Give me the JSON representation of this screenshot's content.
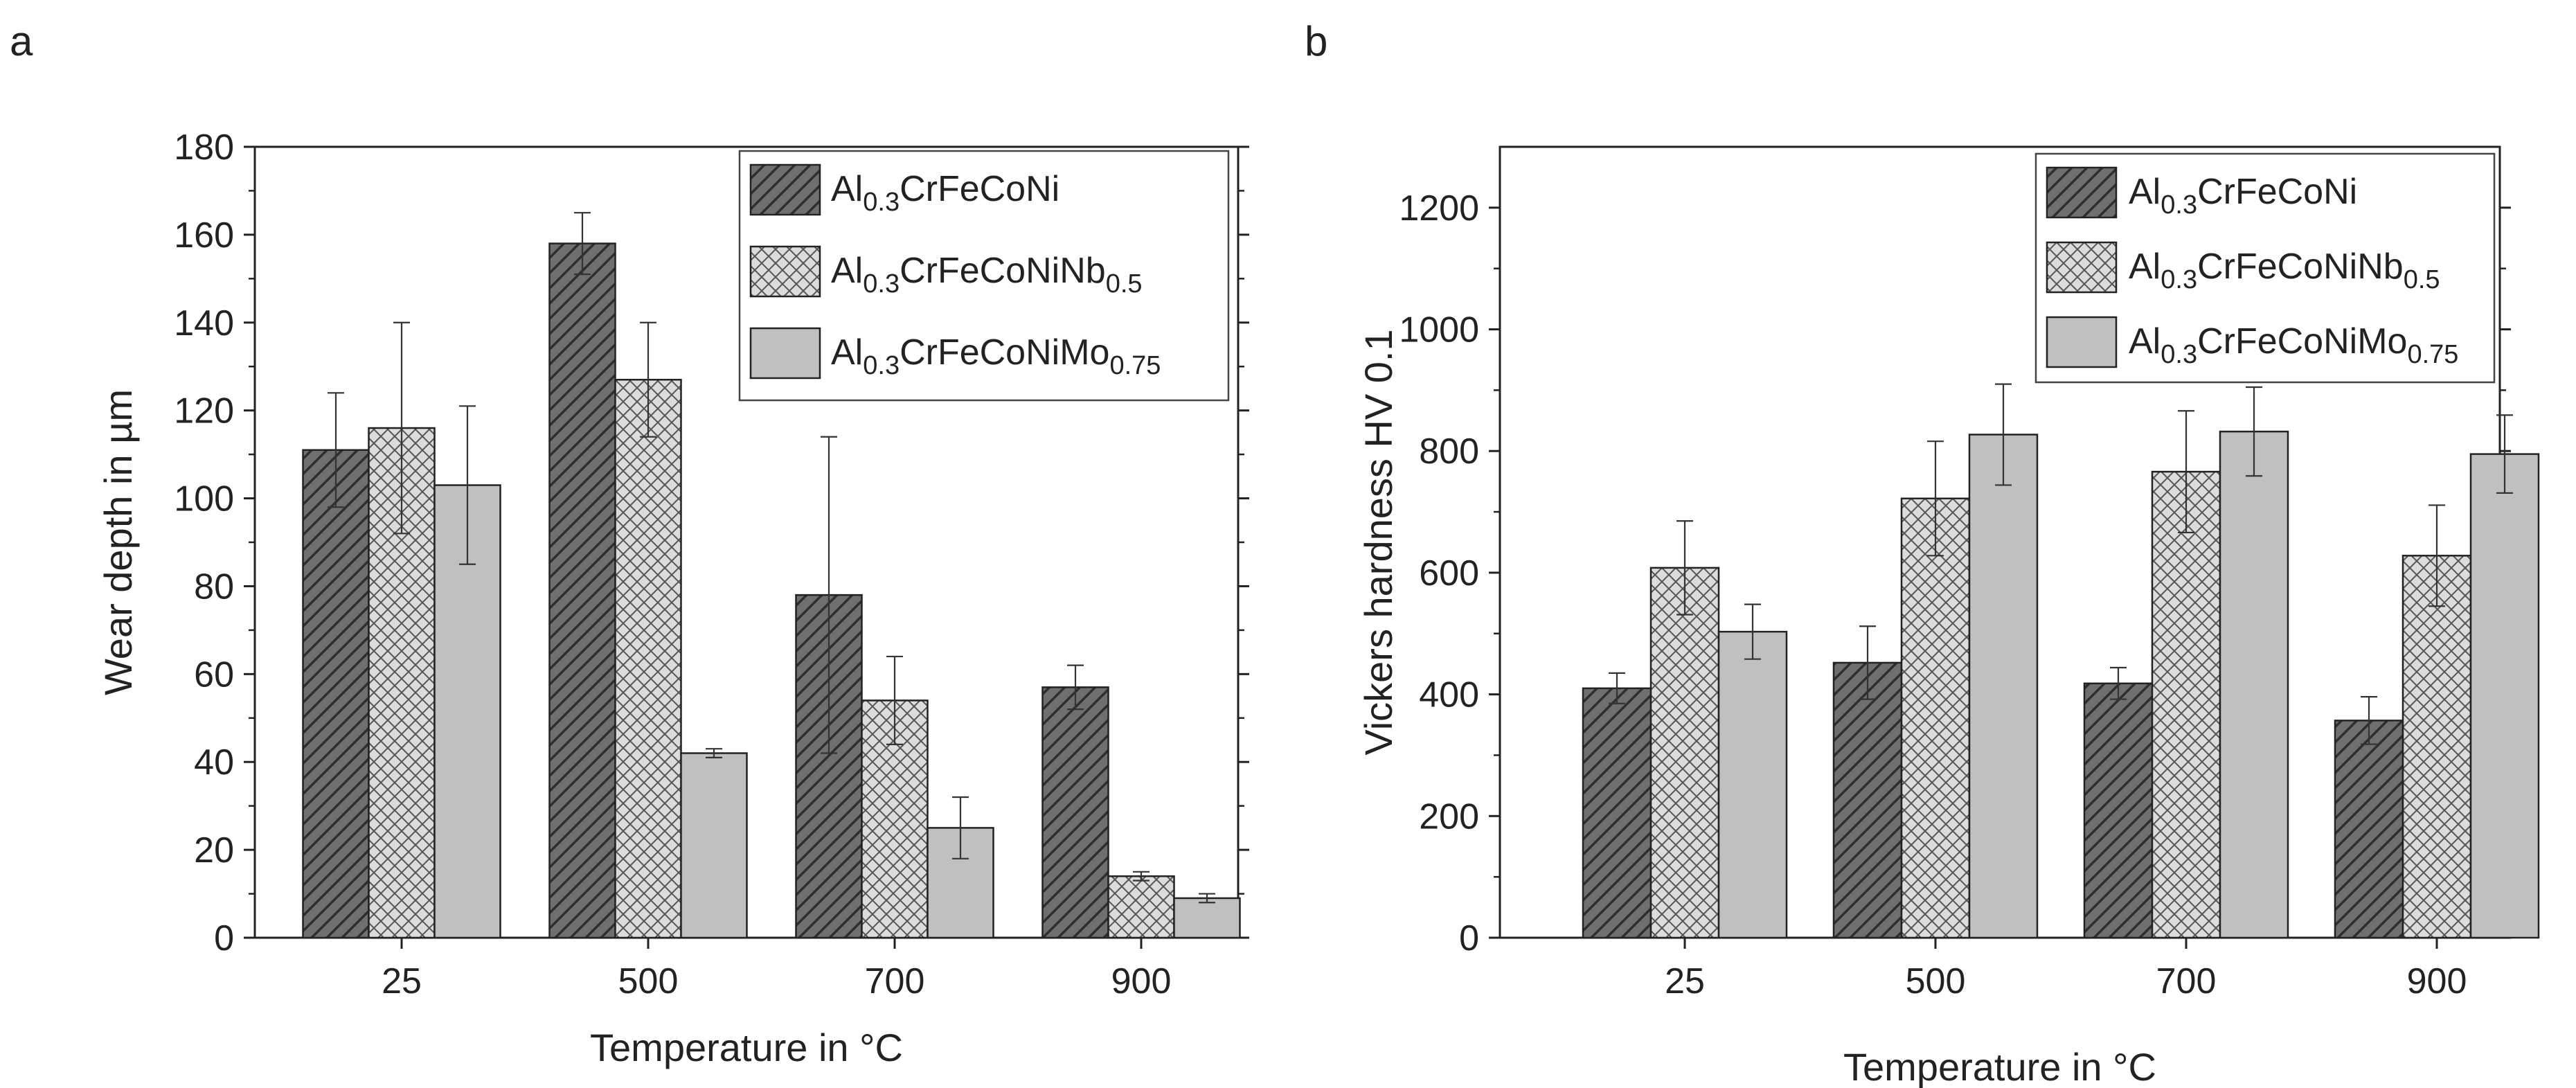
{
  "chart_data": [
    {
      "panel": "a",
      "type": "bar",
      "title": "",
      "xlabel": "Temperature in °C",
      "ylabel": "Wear depth in µm",
      "categories": [
        "25",
        "500",
        "700",
        "900"
      ],
      "ylim": [
        0,
        180
      ],
      "yticks": [
        0,
        20,
        40,
        60,
        80,
        100,
        120,
        140,
        160,
        180
      ],
      "grid": false,
      "legend_position": "top-right",
      "series": [
        {
          "key": "s1",
          "name": "Al0.3CrFeCoNi",
          "name_parts": [
            "Al",
            "0.3",
            "CrFeCoNi",
            ""
          ],
          "fill": "hatch",
          "color": "#6f6f6f",
          "values": [
            111,
            158,
            78,
            57
          ],
          "errors": [
            [
              98,
              124
            ],
            [
              151,
              165
            ],
            [
              42,
              114
            ],
            [
              52,
              62
            ]
          ]
        },
        {
          "key": "s2",
          "name": "Al0.3CrFeCoNiNb0.5",
          "name_parts": [
            "Al",
            "0.3",
            "CrFeCoNiNb",
            "0.5"
          ],
          "fill": "crosshatch",
          "color": "#d9d9d9",
          "values": [
            116,
            127,
            54,
            14
          ],
          "errors": [
            [
              92,
              140
            ],
            [
              114,
              140
            ],
            [
              44,
              64
            ],
            [
              13,
              15
            ]
          ]
        },
        {
          "key": "s3",
          "name": "Al0.3CrFeCoNiMo0.75",
          "name_parts": [
            "Al",
            "0.3",
            "CrFeCoNiMo",
            "0.75"
          ],
          "fill": "solid",
          "color": "#c0c0c0",
          "values": [
            103,
            42,
            25,
            9
          ],
          "errors": [
            [
              85,
              121
            ],
            [
              41,
              43
            ],
            [
              18,
              32
            ],
            [
              8,
              10
            ]
          ]
        }
      ]
    },
    {
      "panel": "b",
      "type": "bar",
      "title": "",
      "xlabel": "Temperature in °C",
      "ylabel": "Vickers hardness HV 0.1",
      "categories": [
        "25",
        "500",
        "700",
        "900"
      ],
      "ylim": [
        0,
        1300
      ],
      "yticks": [
        0,
        200,
        400,
        600,
        800,
        1000,
        1200
      ],
      "grid": false,
      "legend_position": "top-right",
      "series": [
        {
          "key": "s1",
          "name": "Al0.3CrFeCoNi",
          "name_parts": [
            "Al",
            "0.3",
            "CrFeCoNi",
            ""
          ],
          "fill": "hatch",
          "color": "#6f6f6f",
          "values": [
            410,
            452,
            418,
            357
          ],
          "errors": [
            [
              385,
              435
            ],
            [
              392,
              512
            ],
            [
              392,
              444
            ],
            [
              318,
              396
            ]
          ]
        },
        {
          "key": "s2",
          "name": "Al0.3CrFeCoNiNb0.5",
          "name_parts": [
            "Al",
            "0.3",
            "CrFeCoNiNb",
            "0.5"
          ],
          "fill": "crosshatch",
          "color": "#d9d9d9",
          "values": [
            608,
            722,
            766,
            628
          ],
          "errors": [
            [
              531,
              685
            ],
            [
              628,
              816
            ],
            [
              666,
              866
            ],
            [
              545,
              711
            ]
          ]
        },
        {
          "key": "s3",
          "name": "Al0.3CrFeCoNiMo0.75",
          "name_parts": [
            "Al",
            "0.3",
            "CrFeCoNiMo",
            "0.75"
          ],
          "fill": "solid",
          "color": "#c0c0c0",
          "values": [
            503,
            827,
            832,
            795
          ],
          "errors": [
            [
              458,
              548
            ],
            [
              744,
              910
            ],
            [
              759,
              905
            ],
            [
              731,
              859
            ]
          ]
        }
      ]
    }
  ]
}
